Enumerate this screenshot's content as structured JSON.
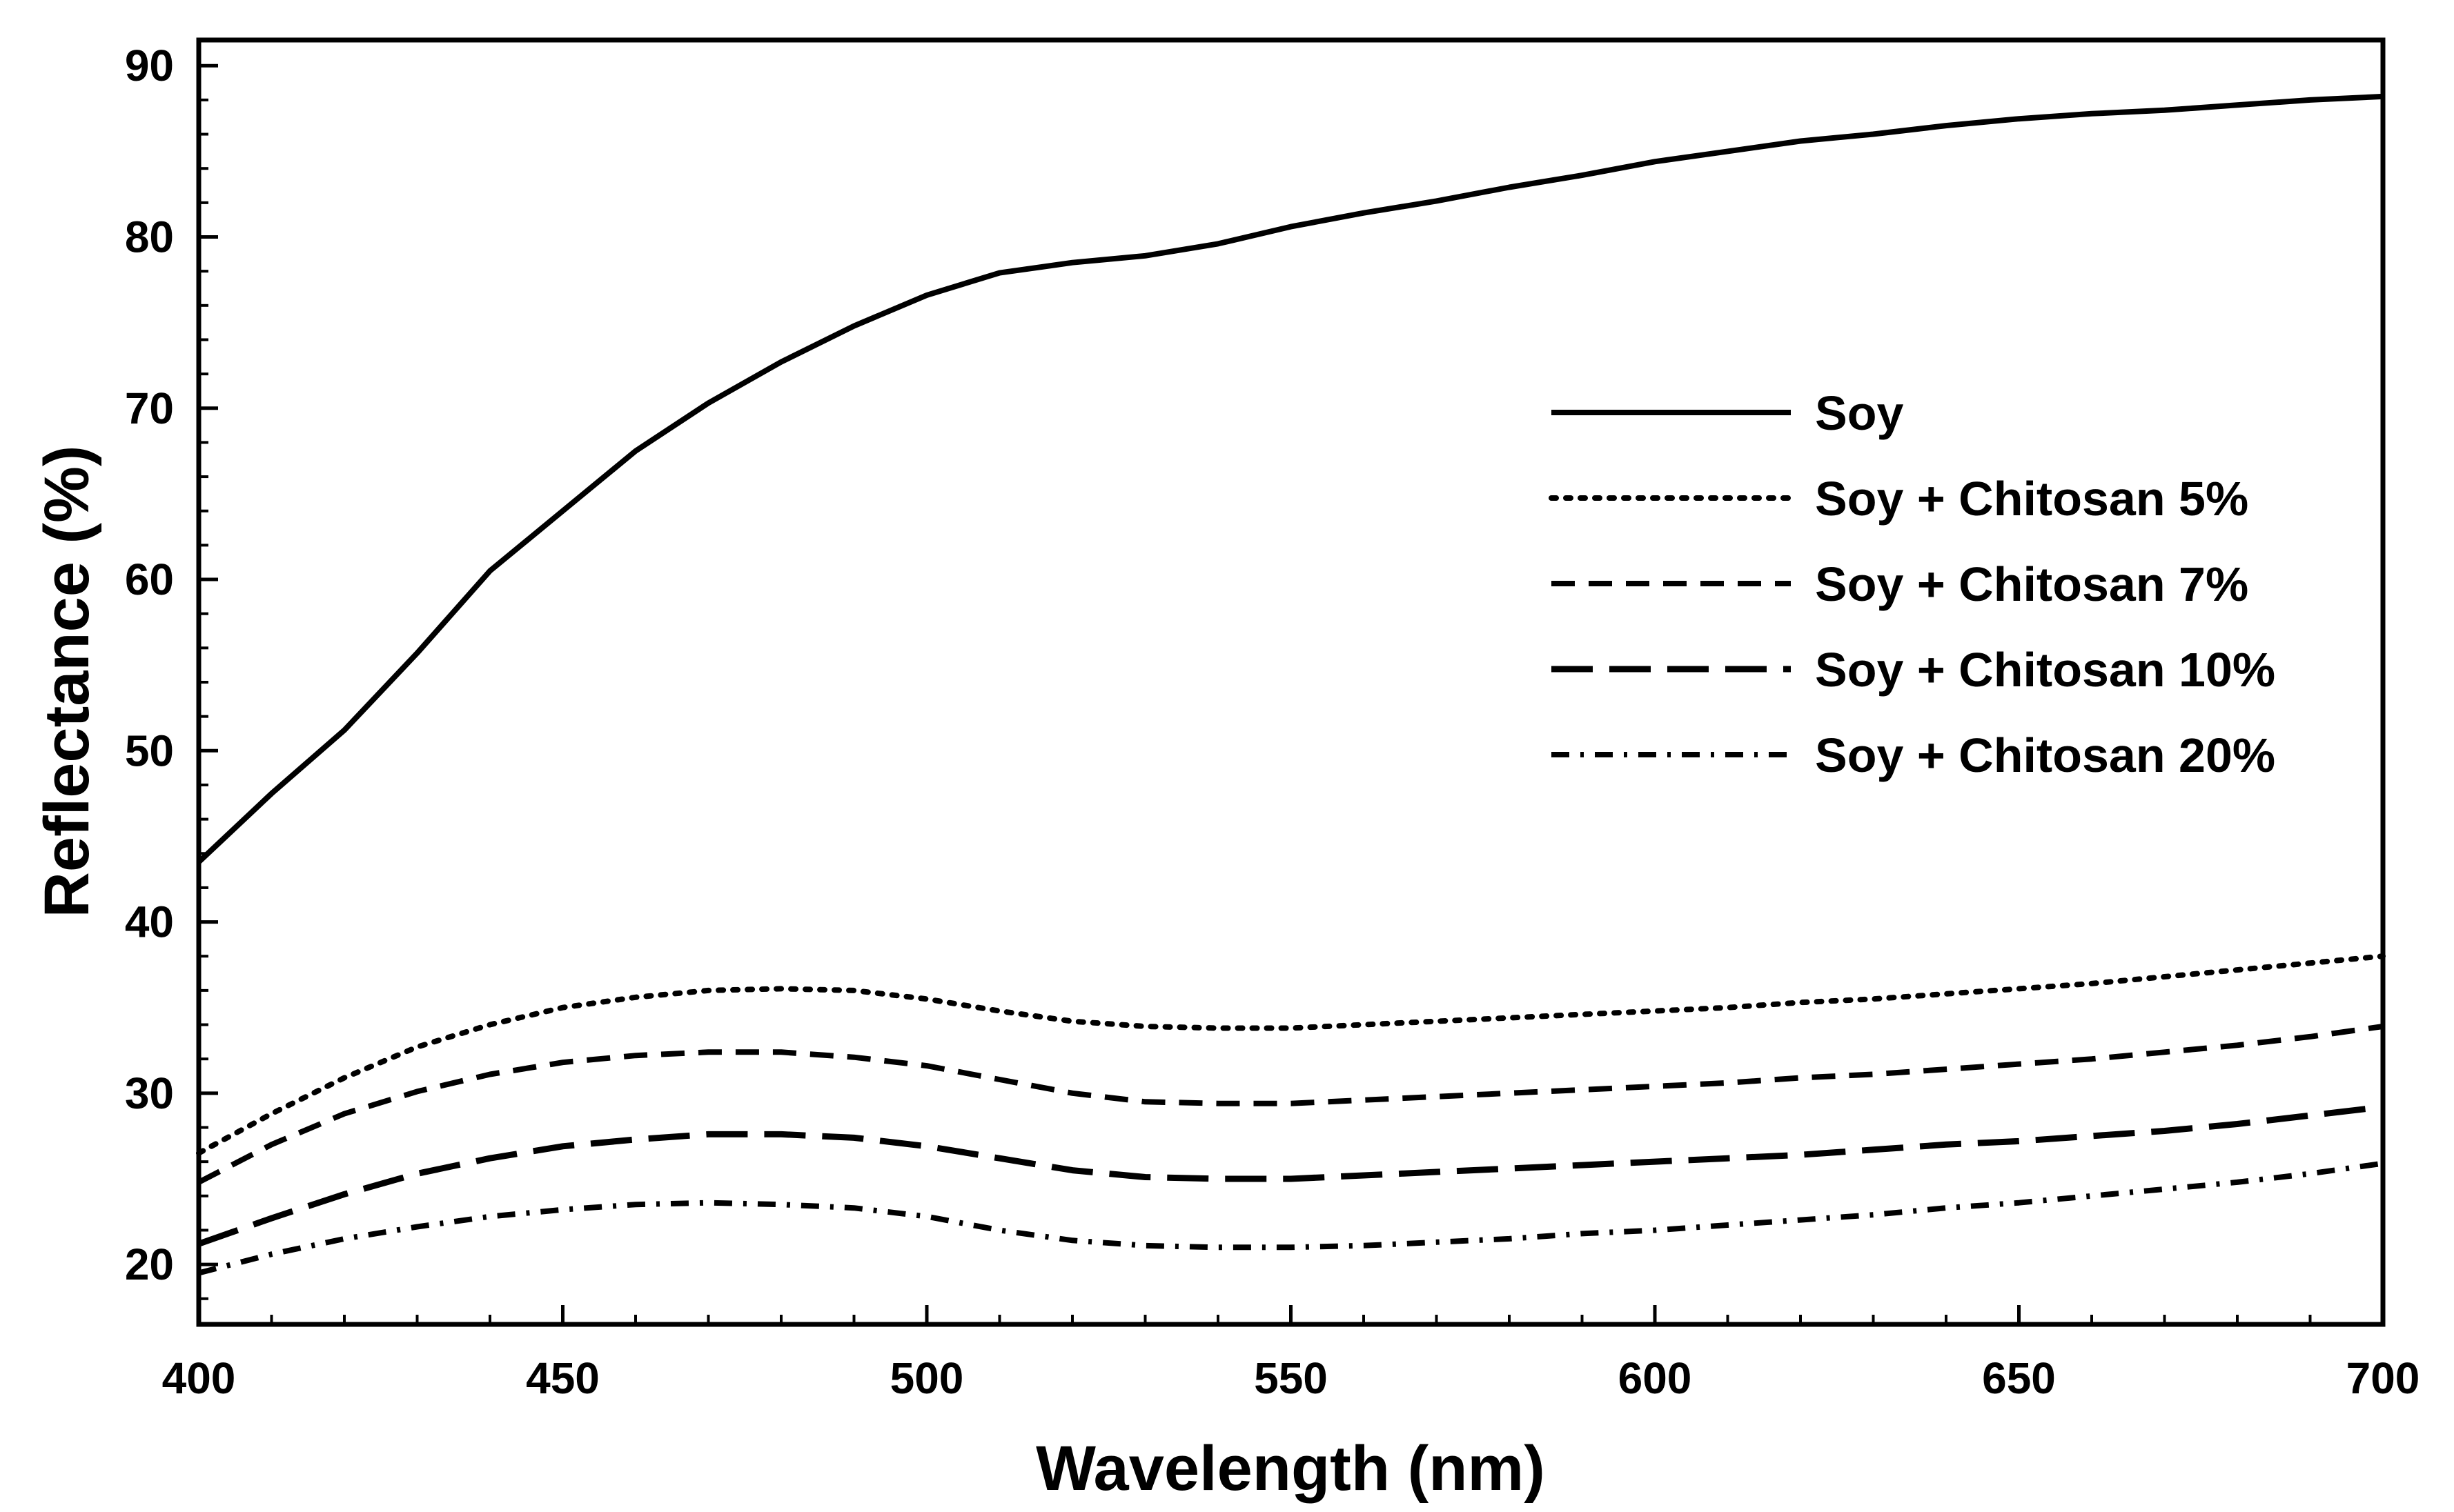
{
  "chart_data": {
    "type": "line",
    "title": "",
    "xlabel": "Wavelength (nm)",
    "ylabel": "Reflectance (%)",
    "xlim": [
      400,
      700
    ],
    "ylim": [
      16.5,
      91.5
    ],
    "x_ticks": [
      400,
      450,
      500,
      550,
      600,
      650,
      700
    ],
    "y_ticks": [
      20,
      30,
      40,
      50,
      60,
      70,
      80,
      90
    ],
    "x_minor_step": 10,
    "y_minor_step": 2,
    "grid": false,
    "legend_position": "upper-right",
    "x": [
      400,
      410,
      420,
      430,
      440,
      450,
      460,
      470,
      480,
      490,
      500,
      510,
      520,
      530,
      540,
      550,
      560,
      570,
      580,
      590,
      600,
      610,
      620,
      630,
      640,
      650,
      660,
      670,
      680,
      690,
      700
    ],
    "series": [
      {
        "name": "Soy",
        "style": "solid",
        "values": [
          43.5,
          47.5,
          51.2,
          55.7,
          60.5,
          64.0,
          67.5,
          70.3,
          72.7,
          74.8,
          76.6,
          77.9,
          78.5,
          78.9,
          79.6,
          80.6,
          81.4,
          82.1,
          82.9,
          83.6,
          84.4,
          85.0,
          85.6,
          86.0,
          86.5,
          86.9,
          87.2,
          87.4,
          87.7,
          88.0,
          88.2
        ]
      },
      {
        "name": "Soy + Chitosan 5%",
        "style": "dotted",
        "values": [
          26.5,
          28.8,
          30.9,
          32.7,
          34.0,
          35.0,
          35.6,
          36.0,
          36.1,
          36.0,
          35.5,
          34.8,
          34.2,
          33.9,
          33.8,
          33.8,
          34.0,
          34.2,
          34.4,
          34.6,
          34.8,
          35.0,
          35.3,
          35.5,
          35.8,
          36.1,
          36.4,
          36.8,
          37.2,
          37.6,
          38.0
        ]
      },
      {
        "name": "Soy + Chitosan 7%",
        "style": "dashed",
        "values": [
          24.8,
          27.0,
          28.8,
          30.1,
          31.1,
          31.8,
          32.2,
          32.4,
          32.4,
          32.1,
          31.6,
          30.8,
          30.0,
          29.5,
          29.4,
          29.4,
          29.6,
          29.8,
          30.0,
          30.2,
          30.4,
          30.6,
          30.9,
          31.1,
          31.4,
          31.7,
          32.0,
          32.4,
          32.8,
          33.3,
          33.9
        ]
      },
      {
        "name": "Soy + Chitosan 10%",
        "style": "long-dashed",
        "values": [
          21.2,
          22.7,
          24.1,
          25.3,
          26.2,
          26.9,
          27.3,
          27.6,
          27.6,
          27.4,
          26.9,
          26.2,
          25.5,
          25.1,
          25.0,
          25.0,
          25.2,
          25.4,
          25.6,
          25.8,
          26.0,
          26.2,
          26.4,
          26.7,
          27.0,
          27.2,
          27.5,
          27.8,
          28.2,
          28.7,
          29.2
        ]
      },
      {
        "name": "Soy + Chitosan 20%",
        "style": "dash-dot",
        "values": [
          19.5,
          20.6,
          21.5,
          22.2,
          22.8,
          23.2,
          23.5,
          23.6,
          23.5,
          23.3,
          22.8,
          22.0,
          21.4,
          21.1,
          21.0,
          21.0,
          21.1,
          21.3,
          21.5,
          21.8,
          22.0,
          22.3,
          22.6,
          22.9,
          23.3,
          23.6,
          24.0,
          24.4,
          24.8,
          25.3,
          25.9
        ]
      }
    ]
  }
}
